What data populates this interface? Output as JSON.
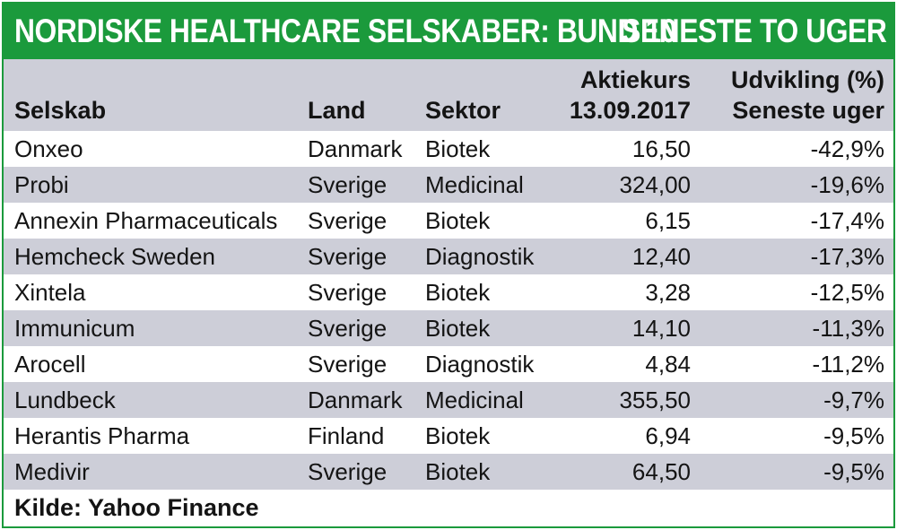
{
  "title": {
    "left": "NORDISKE HEALTHCARE SELSKABER: BUND 10",
    "right": "SENESTE TO UGER"
  },
  "colors": {
    "accent": "#1b9a3c",
    "row_shade": "#cdced8",
    "text": "#141414"
  },
  "chart_data": {
    "type": "table",
    "columns": [
      {
        "key": "company",
        "label": "Selskab"
      },
      {
        "key": "country",
        "label": "Land"
      },
      {
        "key": "sector",
        "label": "Sektor"
      },
      {
        "key": "price",
        "label_line1": "Aktiekurs",
        "label_line2": "13.09.2017"
      },
      {
        "key": "change",
        "label_line1": "Udvikling (%)",
        "label_line2": "Seneste uger"
      }
    ],
    "rows": [
      {
        "company": "Onxeo",
        "country": "Danmark",
        "sector": "Biotek",
        "price": "16,50",
        "change": "-42,9%"
      },
      {
        "company": "Probi",
        "country": "Sverige",
        "sector": "Medicinal",
        "price": "324,00",
        "change": "-19,6%"
      },
      {
        "company": "Annexin Pharmaceuticals",
        "country": "Sverige",
        "sector": "Biotek",
        "price": "6,15",
        "change": "-17,4%"
      },
      {
        "company": "Hemcheck Sweden",
        "country": "Sverige",
        "sector": "Diagnostik",
        "price": "12,40",
        "change": "-17,3%"
      },
      {
        "company": "Xintela",
        "country": "Sverige",
        "sector": "Biotek",
        "price": "3,28",
        "change": "-12,5%"
      },
      {
        "company": "Immunicum",
        "country": "Sverige",
        "sector": "Biotek",
        "price": "14,10",
        "change": "-11,3%"
      },
      {
        "company": "Arocell",
        "country": "Sverige",
        "sector": "Diagnostik",
        "price": "4,84",
        "change": "-11,2%"
      },
      {
        "company": "Lundbeck",
        "country": "Danmark",
        "sector": "Medicinal",
        "price": "355,50",
        "change": "-9,7%"
      },
      {
        "company": "Herantis Pharma",
        "country": "Finland",
        "sector": "Biotek",
        "price": "6,94",
        "change": "-9,5%"
      },
      {
        "company": "Medivir",
        "country": "Sverige",
        "sector": "Biotek",
        "price": "64,50",
        "change": "-9,5%"
      }
    ]
  },
  "source": "Kilde: Yahoo Finance"
}
